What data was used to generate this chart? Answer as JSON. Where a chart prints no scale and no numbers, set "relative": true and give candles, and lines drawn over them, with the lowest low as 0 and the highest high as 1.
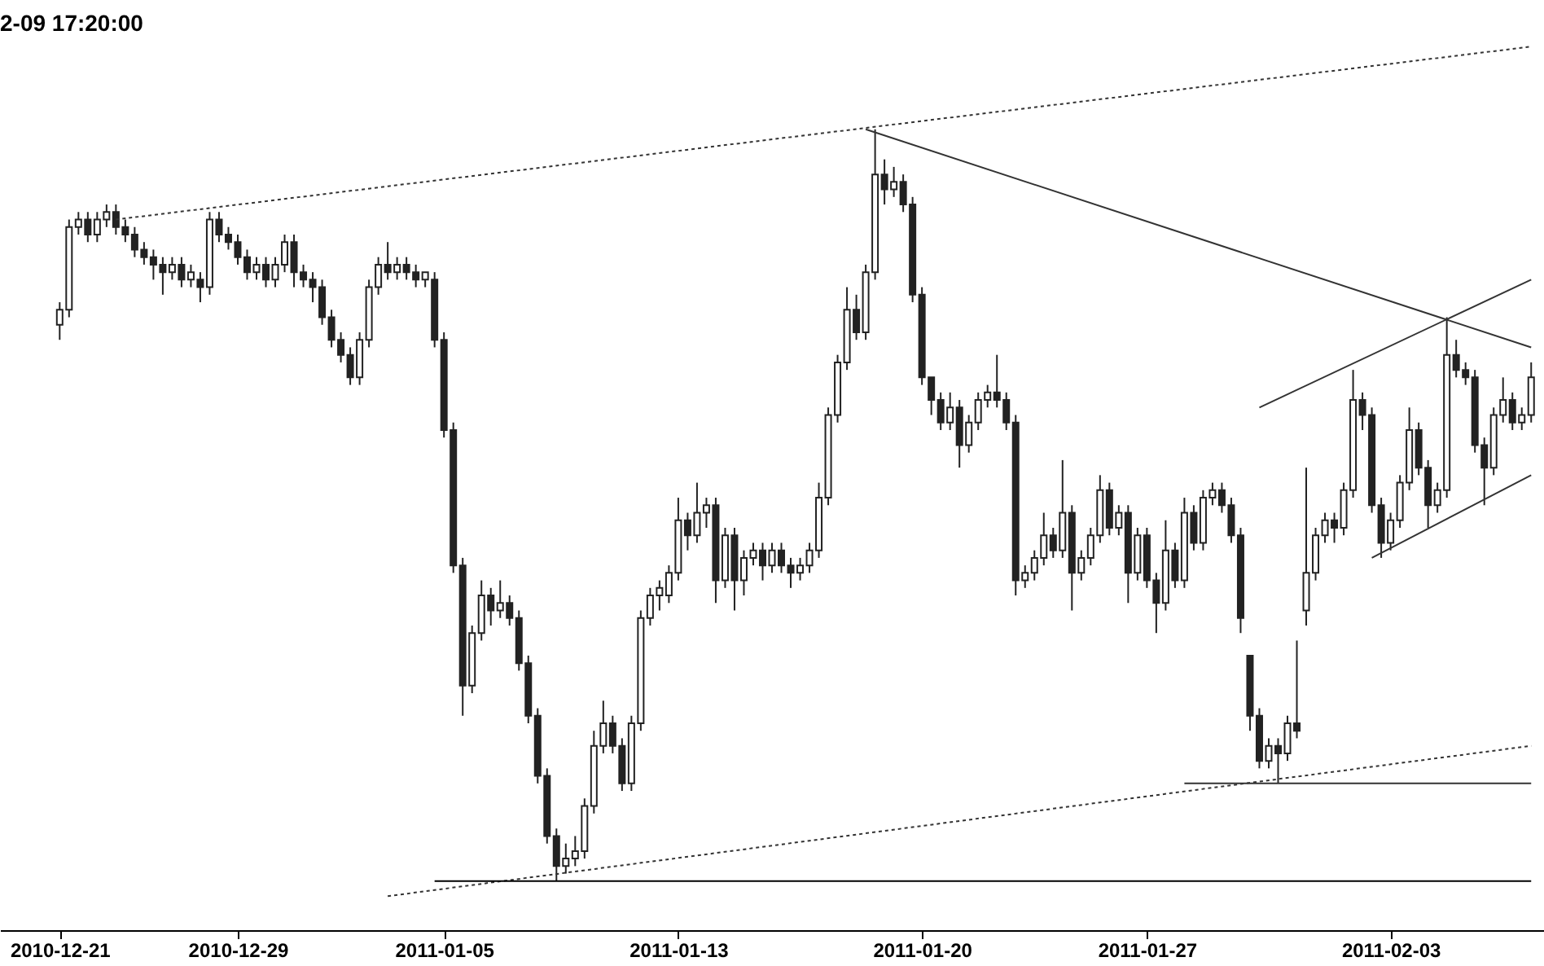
{
  "chart_data": {
    "type": "candlestick",
    "title": "2-09 17:20:00",
    "relative": true,
    "color": "#222222",
    "categories": [
      "2010-12-21",
      null,
      null,
      null,
      null,
      null,
      null,
      null,
      null,
      null,
      null,
      null,
      null,
      null,
      null,
      null,
      null,
      null,
      null,
      "2010-12-29",
      null,
      null,
      null,
      null,
      null,
      null,
      null,
      null,
      null,
      null,
      null,
      null,
      null,
      null,
      null,
      null,
      null,
      null,
      null,
      null,
      null,
      "2011-01-05",
      null,
      null,
      null,
      null,
      null,
      null,
      null,
      null,
      null,
      null,
      null,
      null,
      null,
      null,
      null,
      null,
      null,
      null,
      null,
      null,
      null,
      null,
      null,
      null,
      "2011-01-13",
      null,
      null,
      null,
      null,
      null,
      null,
      null,
      null,
      null,
      null,
      null,
      null,
      null,
      null,
      null,
      null,
      null,
      null,
      null,
      null,
      null,
      null,
      null,
      null,
      null,
      "2011-01-20",
      null,
      null,
      null,
      null,
      null,
      null,
      null,
      null,
      null,
      null,
      null,
      null,
      null,
      null,
      null,
      null,
      null,
      null,
      null,
      null,
      null,
      null,
      null,
      "2011-01-27",
      null,
      null,
      null,
      null,
      null,
      null,
      null,
      null,
      null,
      null,
      null,
      null,
      null,
      null,
      null,
      null,
      null,
      null,
      null,
      null,
      null,
      null,
      null,
      null,
      null,
      "2011-02-03",
      null,
      null,
      null,
      null,
      null,
      null,
      null,
      null,
      null,
      null,
      null,
      null,
      null,
      null,
      null
    ],
    "ohlc": [
      [
        0.74,
        0.77,
        0.72,
        0.76
      ],
      [
        0.76,
        0.88,
        0.75,
        0.87
      ],
      [
        0.87,
        0.89,
        0.86,
        0.88
      ],
      [
        0.88,
        0.89,
        0.85,
        0.86
      ],
      [
        0.86,
        0.89,
        0.85,
        0.88
      ],
      [
        0.88,
        0.9,
        0.87,
        0.89
      ],
      [
        0.89,
        0.9,
        0.86,
        0.87
      ],
      [
        0.87,
        0.88,
        0.85,
        0.86
      ],
      [
        0.86,
        0.87,
        0.83,
        0.84
      ],
      [
        0.84,
        0.85,
        0.82,
        0.83
      ],
      [
        0.83,
        0.84,
        0.8,
        0.82
      ],
      [
        0.82,
        0.83,
        0.78,
        0.81
      ],
      [
        0.81,
        0.83,
        0.8,
        0.82
      ],
      [
        0.82,
        0.83,
        0.79,
        0.8
      ],
      [
        0.8,
        0.82,
        0.79,
        0.81
      ],
      [
        0.8,
        0.81,
        0.77,
        0.79
      ],
      [
        0.79,
        0.89,
        0.78,
        0.88
      ],
      [
        0.88,
        0.89,
        0.85,
        0.86
      ],
      [
        0.86,
        0.87,
        0.84,
        0.85
      ],
      [
        0.85,
        0.86,
        0.82,
        0.83
      ],
      [
        0.83,
        0.84,
        0.8,
        0.81
      ],
      [
        0.81,
        0.83,
        0.8,
        0.82
      ],
      [
        0.82,
        0.83,
        0.79,
        0.8
      ],
      [
        0.8,
        0.83,
        0.79,
        0.82
      ],
      [
        0.82,
        0.86,
        0.81,
        0.85
      ],
      [
        0.85,
        0.86,
        0.79,
        0.81
      ],
      [
        0.81,
        0.82,
        0.79,
        0.8
      ],
      [
        0.8,
        0.81,
        0.77,
        0.79
      ],
      [
        0.79,
        0.8,
        0.74,
        0.75
      ],
      [
        0.75,
        0.76,
        0.71,
        0.72
      ],
      [
        0.72,
        0.73,
        0.69,
        0.7
      ],
      [
        0.7,
        0.71,
        0.66,
        0.67
      ],
      [
        0.67,
        0.73,
        0.66,
        0.72
      ],
      [
        0.72,
        0.8,
        0.71,
        0.79
      ],
      [
        0.79,
        0.83,
        0.78,
        0.82
      ],
      [
        0.82,
        0.85,
        0.8,
        0.81
      ],
      [
        0.81,
        0.83,
        0.8,
        0.82
      ],
      [
        0.82,
        0.83,
        0.8,
        0.81
      ],
      [
        0.81,
        0.82,
        0.79,
        0.8
      ],
      [
        0.8,
        0.81,
        0.79,
        0.81
      ],
      [
        0.8,
        0.81,
        0.71,
        0.72
      ],
      [
        0.72,
        0.73,
        0.59,
        0.6
      ],
      [
        0.6,
        0.61,
        0.41,
        0.42
      ],
      [
        0.42,
        0.43,
        0.22,
        0.26
      ],
      [
        0.26,
        0.34,
        0.25,
        0.33
      ],
      [
        0.33,
        0.4,
        0.32,
        0.38
      ],
      [
        0.38,
        0.39,
        0.34,
        0.36
      ],
      [
        0.36,
        0.4,
        0.35,
        0.37
      ],
      [
        0.37,
        0.38,
        0.34,
        0.35
      ],
      [
        0.35,
        0.36,
        0.28,
        0.29
      ],
      [
        0.29,
        0.3,
        0.21,
        0.22
      ],
      [
        0.22,
        0.23,
        0.13,
        0.14
      ],
      [
        0.14,
        0.15,
        0.05,
        0.06
      ],
      [
        0.06,
        0.07,
        0.0,
        0.02
      ],
      [
        0.02,
        0.05,
        0.01,
        0.03
      ],
      [
        0.03,
        0.06,
        0.02,
        0.04
      ],
      [
        0.04,
        0.11,
        0.03,
        0.1
      ],
      [
        0.1,
        0.2,
        0.09,
        0.18
      ],
      [
        0.18,
        0.24,
        0.17,
        0.21
      ],
      [
        0.21,
        0.22,
        0.17,
        0.18
      ],
      [
        0.18,
        0.19,
        0.12,
        0.13
      ],
      [
        0.13,
        0.22,
        0.12,
        0.21
      ],
      [
        0.21,
        0.36,
        0.2,
        0.35
      ],
      [
        0.35,
        0.39,
        0.34,
        0.38
      ],
      [
        0.38,
        0.4,
        0.36,
        0.39
      ],
      [
        0.38,
        0.42,
        0.37,
        0.41
      ],
      [
        0.41,
        0.51,
        0.4,
        0.48
      ],
      [
        0.48,
        0.49,
        0.44,
        0.46
      ],
      [
        0.46,
        0.53,
        0.45,
        0.49
      ],
      [
        0.49,
        0.51,
        0.47,
        0.5
      ],
      [
        0.5,
        0.51,
        0.37,
        0.4
      ],
      [
        0.4,
        0.47,
        0.39,
        0.46
      ],
      [
        0.46,
        0.47,
        0.36,
        0.4
      ],
      [
        0.4,
        0.44,
        0.38,
        0.43
      ],
      [
        0.43,
        0.45,
        0.42,
        0.44
      ],
      [
        0.44,
        0.45,
        0.4,
        0.42
      ],
      [
        0.42,
        0.45,
        0.41,
        0.44
      ],
      [
        0.44,
        0.45,
        0.41,
        0.42
      ],
      [
        0.42,
        0.43,
        0.39,
        0.41
      ],
      [
        0.41,
        0.43,
        0.4,
        0.42
      ],
      [
        0.42,
        0.45,
        0.41,
        0.44
      ],
      [
        0.44,
        0.53,
        0.43,
        0.51
      ],
      [
        0.51,
        0.63,
        0.5,
        0.62
      ],
      [
        0.62,
        0.7,
        0.61,
        0.69
      ],
      [
        0.69,
        0.79,
        0.68,
        0.76
      ],
      [
        0.76,
        0.78,
        0.72,
        0.73
      ],
      [
        0.73,
        0.82,
        0.72,
        0.81
      ],
      [
        0.81,
        1.0,
        0.8,
        0.94
      ],
      [
        0.94,
        0.96,
        0.9,
        0.92
      ],
      [
        0.92,
        0.95,
        0.91,
        0.93
      ],
      [
        0.93,
        0.94,
        0.89,
        0.9
      ],
      [
        0.9,
        0.91,
        0.77,
        0.78
      ],
      [
        0.78,
        0.79,
        0.66,
        0.67
      ],
      [
        0.67,
        0.67,
        0.62,
        0.64
      ],
      [
        0.64,
        0.65,
        0.6,
        0.61
      ],
      [
        0.61,
        0.65,
        0.6,
        0.63
      ],
      [
        0.63,
        0.64,
        0.55,
        0.58
      ],
      [
        0.58,
        0.62,
        0.57,
        0.61
      ],
      [
        0.61,
        0.65,
        0.6,
        0.64
      ],
      [
        0.64,
        0.66,
        0.63,
        0.65
      ],
      [
        0.65,
        0.7,
        0.63,
        0.64
      ],
      [
        0.64,
        0.65,
        0.6,
        0.61
      ],
      [
        0.61,
        0.62,
        0.38,
        0.4
      ],
      [
        0.4,
        0.42,
        0.39,
        0.41
      ],
      [
        0.41,
        0.44,
        0.4,
        0.43
      ],
      [
        0.43,
        0.49,
        0.42,
        0.46
      ],
      [
        0.46,
        0.47,
        0.43,
        0.44
      ],
      [
        0.44,
        0.56,
        0.43,
        0.49
      ],
      [
        0.49,
        0.5,
        0.36,
        0.41
      ],
      [
        0.41,
        0.44,
        0.4,
        0.43
      ],
      [
        0.43,
        0.47,
        0.42,
        0.46
      ],
      [
        0.46,
        0.54,
        0.45,
        0.52
      ],
      [
        0.52,
        0.53,
        0.46,
        0.47
      ],
      [
        0.47,
        0.5,
        0.46,
        0.49
      ],
      [
        0.49,
        0.5,
        0.37,
        0.41
      ],
      [
        0.41,
        0.47,
        0.4,
        0.46
      ],
      [
        0.46,
        0.47,
        0.39,
        0.4
      ],
      [
        0.4,
        0.41,
        0.33,
        0.37
      ],
      [
        0.37,
        0.48,
        0.36,
        0.44
      ],
      [
        0.44,
        0.45,
        0.39,
        0.4
      ],
      [
        0.4,
        0.51,
        0.39,
        0.49
      ],
      [
        0.49,
        0.5,
        0.44,
        0.45
      ],
      [
        0.45,
        0.52,
        0.44,
        0.51
      ],
      [
        0.51,
        0.53,
        0.5,
        0.52
      ],
      [
        0.52,
        0.53,
        0.49,
        0.5
      ],
      [
        0.5,
        0.51,
        0.45,
        0.46
      ],
      [
        0.46,
        0.47,
        0.33,
        0.35
      ],
      [
        0.3,
        0.3,
        0.2,
        0.22
      ],
      [
        0.22,
        0.23,
        0.15,
        0.16
      ],
      [
        0.16,
        0.19,
        0.15,
        0.18
      ],
      [
        0.18,
        0.19,
        0.13,
        0.17
      ],
      [
        0.17,
        0.22,
        0.16,
        0.21
      ],
      [
        0.21,
        0.32,
        0.19,
        0.2
      ],
      [
        0.36,
        0.55,
        0.34,
        0.41
      ],
      [
        0.41,
        0.47,
        0.4,
        0.46
      ],
      [
        0.46,
        0.49,
        0.45,
        0.48
      ],
      [
        0.48,
        0.49,
        0.45,
        0.47
      ],
      [
        0.47,
        0.53,
        0.46,
        0.52
      ],
      [
        0.52,
        0.68,
        0.51,
        0.64
      ],
      [
        0.64,
        0.65,
        0.6,
        0.62
      ],
      [
        0.62,
        0.63,
        0.49,
        0.5
      ],
      [
        0.5,
        0.51,
        0.43,
        0.45
      ],
      [
        0.45,
        0.49,
        0.44,
        0.48
      ],
      [
        0.48,
        0.54,
        0.47,
        0.53
      ],
      [
        0.53,
        0.63,
        0.52,
        0.6
      ],
      [
        0.6,
        0.61,
        0.54,
        0.55
      ],
      [
        0.55,
        0.56,
        0.47,
        0.5
      ],
      [
        0.5,
        0.53,
        0.49,
        0.52
      ],
      [
        0.52,
        0.75,
        0.51,
        0.7
      ],
      [
        0.7,
        0.72,
        0.67,
        0.68
      ],
      [
        0.68,
        0.69,
        0.66,
        0.67
      ],
      [
        0.67,
        0.68,
        0.57,
        0.58
      ],
      [
        0.58,
        0.59,
        0.5,
        0.55
      ],
      [
        0.55,
        0.63,
        0.54,
        0.62
      ],
      [
        0.62,
        0.67,
        0.61,
        0.64
      ],
      [
        0.64,
        0.65,
        0.6,
        0.61
      ],
      [
        0.61,
        0.63,
        0.6,
        0.62
      ],
      [
        0.62,
        0.69,
        0.61,
        0.67
      ]
    ],
    "series": [
      {
        "type": "line",
        "color": "#333333",
        "line_style": "dotted",
        "values": [
          null,
          null,
          null,
          null,
          null,
          null,
          0.88,
          null,
          null,
          null,
          null,
          null,
          null,
          null,
          null,
          null,
          null,
          null,
          null,
          null,
          null,
          null,
          null,
          null,
          null,
          null,
          null,
          null,
          null,
          null,
          null,
          null,
          null,
          null,
          null,
          null,
          null,
          null,
          null,
          null,
          null,
          null,
          null,
          null,
          null,
          null,
          null,
          null,
          null,
          null,
          null,
          null,
          null,
          null,
          null,
          null,
          null,
          null,
          null,
          null,
          null,
          null,
          null,
          null,
          null,
          null,
          null,
          null,
          null,
          null,
          null,
          null,
          null,
          null,
          null,
          null,
          null,
          null,
          null,
          null,
          null,
          null,
          null,
          null,
          null,
          null,
          null,
          null,
          null,
          null,
          null,
          null,
          null,
          null,
          null,
          null,
          null,
          null,
          null,
          null,
          null,
          null,
          null,
          null,
          null,
          null,
          null,
          null,
          null,
          null,
          null,
          null,
          null,
          null,
          null,
          null,
          null,
          null,
          null,
          null,
          null,
          null,
          null,
          null,
          null,
          null,
          null,
          null,
          null,
          null,
          null,
          null,
          null,
          null,
          null,
          null,
          null,
          null,
          null,
          null,
          null,
          null,
          null,
          null,
          null,
          null,
          null,
          null,
          null,
          null,
          null,
          null,
          null,
          null,
          null,
          null,
          null,
          1.11
        ]
      },
      {
        "type": "line",
        "color": "#333333",
        "line_style": "dotted",
        "values": [
          null,
          null,
          null,
          null,
          null,
          null,
          null,
          null,
          null,
          null,
          null,
          null,
          null,
          null,
          null,
          null,
          null,
          null,
          null,
          null,
          null,
          null,
          null,
          null,
          null,
          null,
          null,
          null,
          null,
          null,
          null,
          null,
          null,
          null,
          null,
          -0.02,
          null,
          null,
          null,
          null,
          null,
          null,
          null,
          null,
          null,
          null,
          null,
          null,
          null,
          null,
          null,
          null,
          null,
          null,
          null,
          null,
          null,
          null,
          null,
          null,
          null,
          null,
          null,
          null,
          null,
          null,
          null,
          null,
          null,
          null,
          null,
          null,
          null,
          null,
          null,
          null,
          null,
          null,
          null,
          null,
          null,
          null,
          null,
          null,
          null,
          null,
          null,
          null,
          null,
          null,
          null,
          null,
          null,
          null,
          null,
          null,
          null,
          null,
          null,
          null,
          null,
          null,
          null,
          null,
          null,
          null,
          null,
          null,
          null,
          null,
          null,
          null,
          null,
          null,
          null,
          null,
          null,
          null,
          null,
          null,
          null,
          null,
          null,
          null,
          null,
          null,
          null,
          null,
          null,
          null,
          null,
          null,
          null,
          null,
          null,
          null,
          null,
          null,
          null,
          null,
          null,
          null,
          null,
          null,
          null,
          null,
          null,
          null,
          null,
          null,
          null,
          null,
          null,
          null,
          null,
          null,
          null,
          0.18
        ]
      },
      {
        "type": "line",
        "color": "#333333",
        "line_style": "solid",
        "values": [
          null,
          null,
          null,
          null,
          null,
          null,
          null,
          null,
          null,
          null,
          null,
          null,
          null,
          null,
          null,
          null,
          null,
          null,
          null,
          null,
          null,
          null,
          null,
          null,
          null,
          null,
          null,
          null,
          null,
          null,
          null,
          null,
          null,
          null,
          null,
          null,
          null,
          null,
          null,
          null,
          null,
          null,
          null,
          null,
          null,
          null,
          null,
          null,
          null,
          null,
          null,
          null,
          null,
          null,
          null,
          null,
          null,
          null,
          null,
          null,
          null,
          null,
          null,
          null,
          null,
          null,
          null,
          null,
          null,
          null,
          null,
          null,
          null,
          null,
          null,
          null,
          null,
          null,
          null,
          null,
          null,
          null,
          null,
          null,
          null,
          null,
          1.0,
          null,
          null,
          null,
          null,
          null,
          null,
          null,
          null,
          null,
          null,
          null,
          null,
          null,
          null,
          null,
          null,
          null,
          null,
          null,
          null,
          null,
          null,
          null,
          null,
          null,
          null,
          null,
          null,
          null,
          null,
          null,
          null,
          null,
          null,
          null,
          null,
          null,
          null,
          null,
          null,
          null,
          null,
          null,
          null,
          null,
          null,
          null,
          null,
          null,
          null,
          null,
          null,
          null,
          null,
          null,
          null,
          null,
          null,
          null,
          null,
          null,
          null,
          null,
          null,
          null,
          null,
          null,
          null,
          null,
          null,
          0.71
        ]
      },
      {
        "type": "line",
        "color": "#333333",
        "line_style": "solid",
        "values": [
          null,
          null,
          null,
          null,
          null,
          null,
          null,
          null,
          null,
          null,
          null,
          null,
          null,
          null,
          null,
          null,
          null,
          null,
          null,
          null,
          null,
          null,
          null,
          null,
          null,
          null,
          null,
          null,
          null,
          null,
          null,
          null,
          null,
          null,
          null,
          null,
          null,
          null,
          null,
          null,
          null,
          null,
          null,
          null,
          null,
          null,
          null,
          null,
          null,
          null,
          null,
          null,
          null,
          null,
          null,
          null,
          null,
          null,
          null,
          null,
          null,
          null,
          null,
          null,
          null,
          null,
          null,
          null,
          null,
          null,
          null,
          null,
          null,
          null,
          null,
          null,
          null,
          null,
          null,
          null,
          null,
          null,
          null,
          null,
          null,
          null,
          null,
          null,
          null,
          null,
          null,
          null,
          null,
          null,
          null,
          null,
          null,
          null,
          null,
          null,
          null,
          null,
          null,
          null,
          null,
          null,
          null,
          null,
          null,
          null,
          null,
          null,
          null,
          null,
          null,
          null,
          null,
          null,
          null,
          null,
          null,
          null,
          null,
          null,
          null,
          null,
          null,
          null,
          0.63,
          null,
          null,
          null,
          null,
          null,
          null,
          null,
          null,
          null,
          null,
          null,
          null,
          null,
          null,
          null,
          null,
          null,
          null,
          null,
          null,
          null,
          null,
          null,
          null,
          null,
          null,
          null,
          null,
          0.8
        ]
      },
      {
        "type": "line",
        "color": "#333333",
        "line_style": "solid",
        "values": [
          null,
          null,
          null,
          null,
          null,
          null,
          null,
          null,
          null,
          null,
          null,
          null,
          null,
          null,
          null,
          null,
          null,
          null,
          null,
          null,
          null,
          null,
          null,
          null,
          null,
          null,
          null,
          null,
          null,
          null,
          null,
          null,
          null,
          null,
          null,
          null,
          null,
          null,
          null,
          null,
          null,
          null,
          null,
          null,
          null,
          null,
          null,
          null,
          null,
          null,
          null,
          null,
          null,
          null,
          null,
          null,
          null,
          null,
          null,
          null,
          null,
          null,
          null,
          null,
          null,
          null,
          null,
          null,
          null,
          null,
          null,
          null,
          null,
          null,
          null,
          null,
          null,
          null,
          null,
          null,
          null,
          null,
          null,
          null,
          null,
          null,
          null,
          null,
          null,
          null,
          null,
          null,
          null,
          null,
          null,
          null,
          null,
          null,
          null,
          null,
          null,
          null,
          null,
          null,
          null,
          null,
          null,
          null,
          null,
          null,
          null,
          null,
          null,
          null,
          null,
          null,
          null,
          null,
          null,
          null,
          null,
          null,
          null,
          null,
          null,
          null,
          null,
          null,
          null,
          null,
          null,
          null,
          null,
          null,
          null,
          null,
          null,
          null,
          null,
          null,
          0.43,
          null,
          null,
          null,
          null,
          null,
          null,
          null,
          null,
          null,
          null,
          null,
          null,
          null,
          null,
          null,
          null,
          0.54
        ]
      },
      {
        "type": "line",
        "color": "#000000",
        "line_style": "solid",
        "values": [
          null,
          null,
          null,
          null,
          null,
          null,
          null,
          null,
          null,
          null,
          null,
          null,
          null,
          null,
          null,
          null,
          null,
          null,
          null,
          null,
          null,
          null,
          null,
          null,
          null,
          null,
          null,
          null,
          null,
          null,
          null,
          null,
          null,
          null,
          null,
          null,
          null,
          null,
          null,
          null,
          0.0,
          null,
          null,
          null,
          null,
          null,
          null,
          null,
          null,
          null,
          null,
          null,
          null,
          null,
          null,
          null,
          null,
          null,
          null,
          null,
          null,
          null,
          null,
          null,
          null,
          null,
          null,
          null,
          null,
          null,
          null,
          null,
          null,
          null,
          null,
          null,
          null,
          null,
          null,
          null,
          null,
          null,
          null,
          null,
          null,
          null,
          null,
          null,
          null,
          null,
          null,
          null,
          null,
          null,
          null,
          null,
          null,
          null,
          null,
          null,
          null,
          null,
          null,
          null,
          null,
          null,
          null,
          null,
          null,
          null,
          null,
          null,
          null,
          null,
          null,
          null,
          null,
          null,
          null,
          null,
          null,
          null,
          null,
          null,
          null,
          null,
          null,
          null,
          null,
          null,
          null,
          null,
          null,
          null,
          null,
          null,
          null,
          null,
          null,
          null,
          null,
          null,
          null,
          null,
          null,
          null,
          null,
          null,
          null,
          null,
          null,
          null,
          null,
          null,
          null,
          null,
          null,
          0.0
        ]
      },
      {
        "type": "line",
        "color": "#333333",
        "line_style": "solid",
        "values": [
          null,
          null,
          null,
          null,
          null,
          null,
          null,
          null,
          null,
          null,
          null,
          null,
          null,
          null,
          null,
          null,
          null,
          null,
          null,
          null,
          null,
          null,
          null,
          null,
          null,
          null,
          null,
          null,
          null,
          null,
          null,
          null,
          null,
          null,
          null,
          null,
          null,
          null,
          null,
          null,
          null,
          null,
          null,
          null,
          null,
          null,
          null,
          null,
          null,
          null,
          null,
          null,
          null,
          null,
          null,
          null,
          null,
          null,
          null,
          null,
          null,
          null,
          null,
          null,
          null,
          null,
          null,
          null,
          null,
          null,
          null,
          null,
          null,
          null,
          null,
          null,
          null,
          null,
          null,
          null,
          null,
          null,
          null,
          null,
          null,
          null,
          null,
          null,
          null,
          null,
          null,
          null,
          null,
          null,
          null,
          null,
          null,
          null,
          null,
          null,
          null,
          null,
          null,
          null,
          null,
          null,
          null,
          null,
          null,
          null,
          null,
          null,
          null,
          null,
          null,
          null,
          null,
          null,
          null,
          null,
          0.13,
          null,
          null,
          null,
          null,
          null,
          null,
          null,
          null,
          null,
          null,
          null,
          null,
          null,
          null,
          null,
          null,
          null,
          null,
          null,
          null,
          null,
          null,
          null,
          null,
          null,
          null,
          null,
          null,
          null,
          null,
          null,
          null,
          null,
          null,
          null,
          null,
          0.13
        ]
      }
    ]
  }
}
